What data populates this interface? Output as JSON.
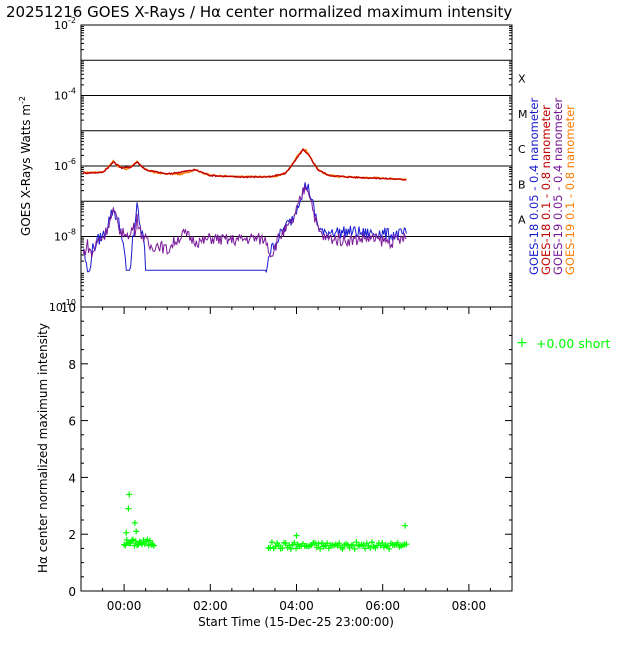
{
  "title": "20251216 GOES X-Rays / Hα center normalized maximum intensity",
  "colors": {
    "axis": "#000000",
    "goes18_short": "#1a1ad0",
    "goes18_long": "#c00000",
    "goes19_short": "#7a1a9a",
    "goes19_long": "#ff7a00",
    "halpha": "#00ff00"
  },
  "chart_data": [
    {
      "type": "line",
      "title": "GOES X-Rays",
      "ylabel": "GOES X-Rays Watts m",
      "ylabel_sup": "-2",
      "yscale": "log",
      "ylim": [
        1e-10,
        0.01
      ],
      "xlim": [
        -1.0,
        9.0
      ],
      "x_unit": "hours from 00:00 (16-Dec-25)",
      "y_ticks": [
        {
          "base": "10",
          "exp": "-2",
          "value": 0.01
        },
        {
          "base": "10",
          "exp": "-4",
          "value": 0.0001
        },
        {
          "base": "10",
          "exp": "-6",
          "value": 1e-06
        },
        {
          "base": "10",
          "exp": "-8",
          "value": 1e-08
        },
        {
          "base": "10",
          "exp": "-10",
          "value": 1e-10
        }
      ],
      "flare_lines": [
        0.001,
        0.0001,
        1e-05,
        1e-06,
        1e-07,
        1e-08
      ],
      "flare_classes": [
        {
          "label": "X",
          "value": 0.0003
        },
        {
          "label": "M",
          "value": 3e-05
        },
        {
          "label": "C",
          "value": 3e-06
        },
        {
          "label": "B",
          "value": 3e-07
        },
        {
          "label": "A",
          "value": 3e-08
        }
      ],
      "legend": [
        {
          "name": "GOES-18 0.05 - 0.4 nanometer",
          "color_key": "goes18_short"
        },
        {
          "name": "GOES-18 0.1 - 0.8 nanometer",
          "color_key": "goes18_long"
        },
        {
          "name": "GOES-19 0.05 - 0.4 nanometer",
          "color_key": "goes19_short"
        },
        {
          "name": "GOES-19 0.1 - 0.8 nanometer",
          "color_key": "goes19_long"
        }
      ],
      "series": [
        {
          "name": "GOES-19 0.1 - 0.8 nanometer",
          "color_key": "goes19_long",
          "x": [
            -0.95,
            -0.5,
            -0.45,
            -0.35,
            -0.25,
            -0.15,
            -0.05,
            0.05,
            0.15,
            0.25,
            0.3,
            0.38,
            0.5,
            0.7,
            1.0,
            1.3,
            1.5,
            1.65,
            1.8,
            2.0,
            2.3,
            2.6,
            3.0,
            3.4,
            3.6,
            3.75,
            3.85,
            3.95,
            4.05,
            4.15,
            4.22,
            4.3,
            4.4,
            4.5,
            4.6,
            4.75,
            5.0,
            5.3,
            5.6,
            5.9,
            6.2,
            6.55
          ],
          "values": [
            6.5e-07,
            6.8e-07,
            7.5e-07,
            1e-06,
            1.4e-06,
            1e-06,
            9e-07,
            8e-07,
            9.5e-07,
            1.2e-06,
            1.4e-06,
            1e-06,
            8e-07,
            6.5e-07,
            6e-07,
            5.8e-07,
            6.8e-07,
            8e-07,
            6.5e-07,
            5.5e-07,
            5.2e-07,
            5e-07,
            5e-07,
            5e-07,
            5.2e-07,
            6.5e-07,
            9e-07,
            1.4e-06,
            2.2e-06,
            3e-06,
            2.8e-06,
            2e-06,
            1.2e-06,
            8e-07,
            6.5e-07,
            5.5e-07,
            5e-07,
            4.9e-07,
            4.7e-07,
            4.6e-07,
            4.4e-07,
            4.2e-07
          ]
        },
        {
          "name": "GOES-18 0.1 - 0.8 nanometer",
          "color_key": "goes18_long",
          "x": [
            -0.95,
            -0.5,
            -0.35,
            -0.25,
            -0.05,
            0.15,
            0.3,
            0.5,
            1.0,
            1.65,
            2.0,
            2.6,
            3.4,
            3.75,
            3.95,
            4.15,
            4.3,
            4.5,
            4.75,
            5.3,
            5.9,
            6.55
          ],
          "values": [
            6.3e-07,
            6.6e-07,
            9.6e-07,
            1.3e-06,
            8.8e-07,
            9.2e-07,
            1.3e-06,
            7.8e-07,
            5.9e-07,
            7.8e-07,
            5.4e-07,
            4.9e-07,
            4.9e-07,
            6.3e-07,
            1.3e-06,
            2.9e-06,
            1.9e-06,
            7.8e-07,
            5.4e-07,
            4.8e-07,
            4.5e-07,
            4.1e-07
          ]
        },
        {
          "name": "GOES-18 0.05 - 0.4 nanometer",
          "color_key": "goes18_short",
          "x": [
            -0.95,
            -0.85,
            -0.8,
            -0.75,
            -0.6,
            -0.45,
            -0.35,
            -0.25,
            -0.15,
            -0.05,
            0.05,
            0.1,
            0.15,
            0.2,
            0.25,
            0.3,
            0.35,
            0.45,
            0.5,
            0.6,
            0.8,
            1.0,
            1.2,
            1.4,
            1.6,
            1.8,
            2.0,
            2.3,
            2.6,
            3.0,
            3.3,
            3.35,
            3.45,
            3.6,
            3.75,
            3.85,
            3.95,
            4.05,
            4.15,
            4.22,
            4.3,
            4.4,
            4.5,
            4.65,
            4.8,
            5.0,
            5.3,
            5.6,
            5.9,
            6.2,
            6.55
          ],
          "values": [
            5e-09,
            1e-09,
            1e-09,
            4e-09,
            8e-09,
            1.2e-08,
            3e-08,
            6e-08,
            3e-08,
            1.2e-08,
            1.1e-09,
            1.1e-09,
            1.1e-09,
            8e-09,
            2e-08,
            1e-07,
            2e-08,
            1e-08,
            1.1e-09,
            1.1e-09,
            1.1e-09,
            1.1e-09,
            1.1e-09,
            1.1e-09,
            1.1e-09,
            1.1e-09,
            1.1e-09,
            1.1e-09,
            1.1e-09,
            1.1e-09,
            1.1e-09,
            3e-09,
            5e-09,
            1e-08,
            2e-08,
            2.5e-08,
            4e-08,
            1e-07,
            2e-07,
            3e-07,
            2e-07,
            6e-08,
            2e-08,
            1.1e-08,
            1.5e-08,
            1.3e-08,
            1.4e-08,
            1.2e-08,
            1.3e-08,
            1.1e-08,
            1.2e-08
          ]
        },
        {
          "name": "GOES-19 0.05 - 0.4 nanometer",
          "color_key": "goes19_short",
          "x": [
            -0.95,
            -0.85,
            -0.75,
            -0.6,
            -0.45,
            -0.35,
            -0.25,
            -0.15,
            -0.05,
            0.05,
            0.1,
            0.15,
            0.2,
            0.25,
            0.3,
            0.35,
            0.45,
            0.6,
            0.8,
            1.0,
            1.2,
            1.4,
            1.6,
            1.8,
            2.0,
            2.3,
            2.6,
            3.0,
            3.3,
            3.4,
            3.5,
            3.6,
            3.75,
            3.85,
            3.95,
            4.05,
            4.15,
            4.22,
            4.3,
            4.4,
            4.5,
            4.65,
            4.8,
            5.0,
            5.3,
            5.6,
            5.9,
            6.2,
            6.55
          ],
          "values": [
            3e-09,
            6e-09,
            3e-09,
            8e-09,
            1.1e-08,
            2.5e-08,
            5e-08,
            2.5e-08,
            1.1e-08,
            1.5e-08,
            8e-09,
            1.2e-08,
            2e-08,
            1.5e-08,
            4e-08,
            1.5e-08,
            1e-08,
            5e-09,
            6e-09,
            4e-09,
            8e-09,
            1.2e-08,
            8e-09,
            7e-09,
            9e-09,
            8e-09,
            8e-09,
            9e-09,
            8e-09,
            3e-09,
            5e-09,
            1e-08,
            1.5e-08,
            2e-08,
            3.5e-08,
            8e-08,
            1.8e-07,
            2.8e-07,
            1.8e-07,
            5e-08,
            1.5e-08,
            9e-09,
            9e-09,
            8e-09,
            8e-09,
            9e-09,
            8e-09,
            7e-09,
            9e-09
          ]
        }
      ]
    },
    {
      "type": "scatter",
      "title": "Hα center normalized maximum intensity",
      "ylabel": "Hα center normalized maximum intensity",
      "ylim": [
        0,
        10
      ],
      "y_ticks": [
        "0",
        "2",
        "4",
        "6",
        "8",
        "10"
      ],
      "xlim": [
        -1.0,
        9.0
      ],
      "xlabel": "Start Time (15-Dec-25 23:00:00)",
      "x_ticks": [
        {
          "label": "00:00",
          "value": 0
        },
        {
          "label": "02:00",
          "value": 2
        },
        {
          "label": "04:00",
          "value": 4
        },
        {
          "label": "06:00",
          "value": 6
        },
        {
          "label": "08:00",
          "value": 8
        }
      ],
      "legend": [
        {
          "marker": "+",
          "name": "+0.00 short",
          "color_key": "halpha"
        }
      ],
      "clusters": [
        {
          "x_start": 0.0,
          "x_end": 0.7,
          "step": 0.03,
          "baseline": 1.7
        },
        {
          "x_start": 3.35,
          "x_end": 6.55,
          "step": 0.04,
          "baseline": 1.6
        }
      ],
      "outliers": [
        {
          "x": 0.12,
          "y": 3.4
        },
        {
          "x": 0.1,
          "y": 2.9
        },
        {
          "x": 0.25,
          "y": 2.4
        },
        {
          "x": 0.28,
          "y": 2.1
        },
        {
          "x": 0.05,
          "y": 2.05
        },
        {
          "x": 4.0,
          "y": 1.95
        },
        {
          "x": 6.52,
          "y": 2.3
        }
      ]
    }
  ]
}
